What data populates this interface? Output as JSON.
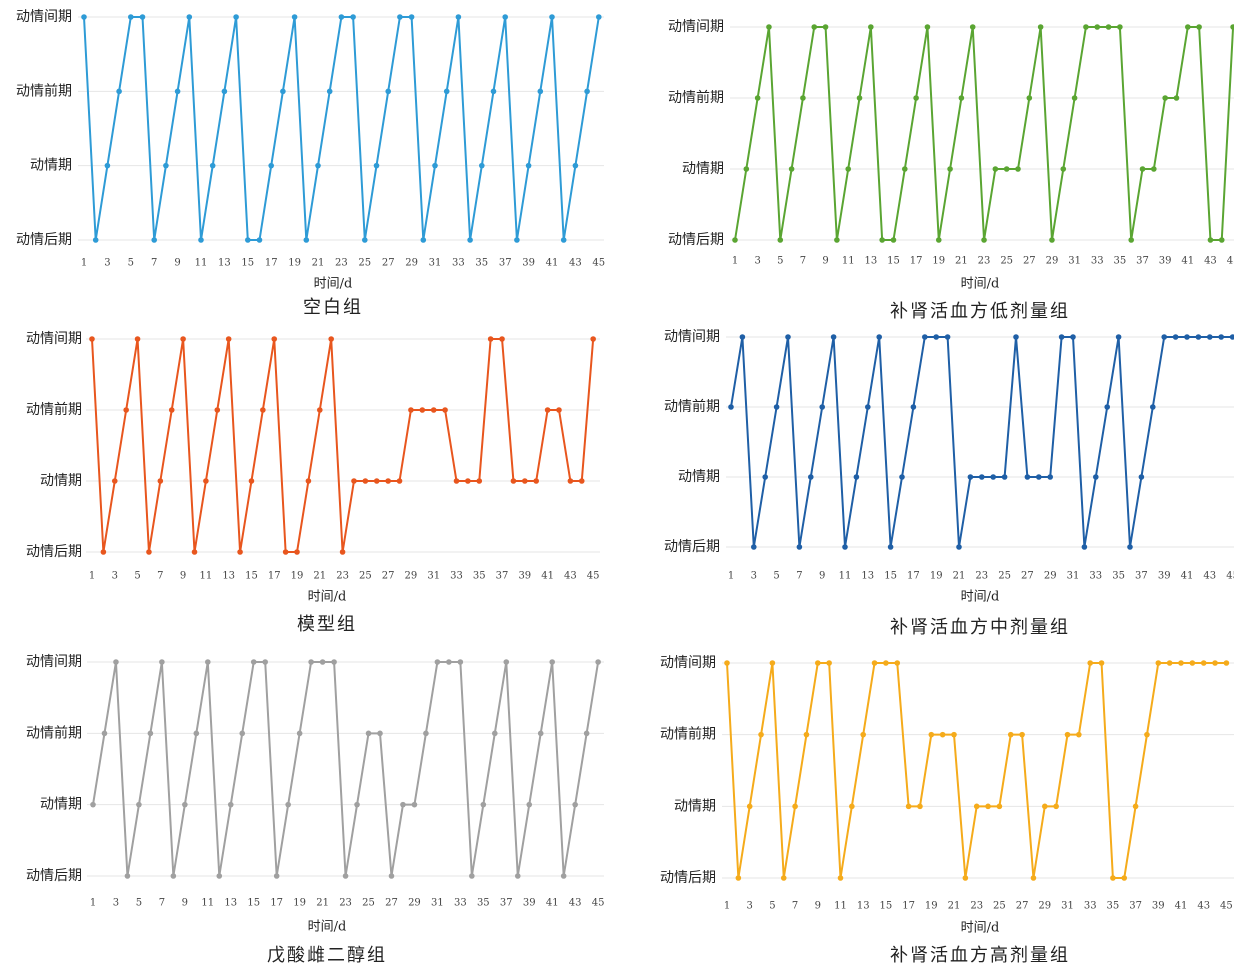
{
  "chart_data": [
    {
      "type": "line",
      "title": "空白组",
      "x_label": "时间/d",
      "categories": [
        1,
        null,
        3,
        null,
        5,
        null,
        7,
        null,
        9,
        null,
        11,
        null,
        13,
        null,
        15,
        null,
        17,
        null,
        19,
        null,
        21,
        null,
        23,
        null,
        25,
        null,
        27,
        null,
        29,
        null,
        31,
        null,
        33,
        null,
        35,
        null,
        37,
        null,
        39,
        null,
        41,
        null,
        43,
        null,
        45
      ],
      "ylim": [
        0,
        3
      ],
      "yticks": [
        {
          "value": 0,
          "label": "动情后期"
        },
        {
          "value": 1,
          "label": "动情期"
        },
        {
          "value": 2,
          "label": "动情前期"
        },
        {
          "value": 3,
          "label": "动情间期"
        }
      ],
      "grid": true,
      "series": [
        {
          "color": "#2e9bd6",
          "values": [
            3,
            0,
            1,
            2,
            3,
            3,
            0,
            1,
            2,
            3,
            0,
            1,
            2,
            3,
            0,
            0,
            1,
            2,
            3,
            0,
            1,
            2,
            3,
            3,
            0,
            1,
            2,
            3,
            3,
            0,
            1,
            2,
            3,
            0,
            1,
            2,
            3,
            0,
            1,
            2,
            3,
            0,
            1,
            2,
            3
          ]
        }
      ]
    },
    {
      "type": "line",
      "title": "补肾活血方低剂量组",
      "x_label": "时间/d",
      "categories": [
        1,
        null,
        3,
        null,
        5,
        null,
        7,
        null,
        9,
        null,
        11,
        null,
        13,
        null,
        15,
        null,
        17,
        null,
        19,
        null,
        21,
        null,
        23,
        null,
        25,
        null,
        27,
        null,
        29,
        null,
        31,
        null,
        33,
        null,
        35,
        null,
        37,
        null,
        39,
        null,
        41,
        null,
        43,
        null,
        45
      ],
      "ylim": [
        0,
        3
      ],
      "yticks": [
        {
          "value": 0,
          "label": "动情后期"
        },
        {
          "value": 1,
          "label": "动情期"
        },
        {
          "value": 2,
          "label": "动情前期"
        },
        {
          "value": 3,
          "label": "动情间期"
        }
      ],
      "grid": true,
      "series": [
        {
          "color": "#5aa532",
          "values": [
            0,
            1,
            2,
            3,
            0,
            1,
            2,
            3,
            3,
            0,
            1,
            2,
            3,
            0,
            0,
            1,
            2,
            3,
            0,
            1,
            2,
            3,
            0,
            1,
            1,
            1,
            2,
            3,
            0,
            1,
            2,
            3,
            3,
            3,
            3,
            0,
            1,
            1,
            2,
            2,
            3,
            3,
            0,
            0,
            3
          ]
        }
      ]
    },
    {
      "type": "line",
      "title": "模型组",
      "x_label": "时间/d",
      "categories": [
        1,
        null,
        3,
        null,
        5,
        null,
        7,
        null,
        9,
        null,
        11,
        null,
        13,
        null,
        15,
        null,
        17,
        null,
        19,
        null,
        21,
        null,
        23,
        null,
        25,
        null,
        27,
        null,
        29,
        null,
        31,
        null,
        33,
        null,
        35,
        null,
        37,
        null,
        39,
        null,
        41,
        null,
        43,
        null,
        45
      ],
      "ylim": [
        0,
        3
      ],
      "yticks": [
        {
          "value": 0,
          "label": "动情后期"
        },
        {
          "value": 1,
          "label": "动情期"
        },
        {
          "value": 2,
          "label": "动情前期"
        },
        {
          "value": 3,
          "label": "动情间期"
        }
      ],
      "grid": true,
      "series": [
        {
          "color": "#e8561e",
          "values": [
            3,
            0,
            1,
            2,
            3,
            0,
            1,
            2,
            3,
            0,
            1,
            2,
            3,
            0,
            1,
            2,
            3,
            0,
            0,
            1,
            2,
            3,
            0,
            1,
            1,
            1,
            1,
            1,
            2,
            2,
            2,
            2,
            1,
            1,
            1,
            3,
            3,
            1,
            1,
            1,
            2,
            2,
            1,
            1,
            3
          ]
        }
      ]
    },
    {
      "type": "line",
      "title": "补肾活血方中剂量组",
      "x_label": "时间/d",
      "categories": [
        1,
        null,
        3,
        null,
        5,
        null,
        7,
        null,
        9,
        null,
        11,
        null,
        13,
        null,
        15,
        null,
        17,
        null,
        19,
        null,
        21,
        null,
        23,
        null,
        25,
        null,
        27,
        null,
        29,
        null,
        31,
        null,
        33,
        null,
        35,
        null,
        37,
        null,
        39,
        null,
        41,
        null,
        43,
        null,
        45
      ],
      "ylim": [
        0,
        3
      ],
      "yticks": [
        {
          "value": 0,
          "label": "动情后期"
        },
        {
          "value": 1,
          "label": "动情期"
        },
        {
          "value": 2,
          "label": "动情前期"
        },
        {
          "value": 3,
          "label": "动情间期"
        }
      ],
      "grid": true,
      "series": [
        {
          "color": "#1f5fa6",
          "values": [
            2,
            3,
            0,
            1,
            2,
            3,
            0,
            1,
            2,
            3,
            0,
            1,
            2,
            3,
            0,
            1,
            2,
            3,
            3,
            3,
            0,
            1,
            1,
            1,
            1,
            3,
            1,
            1,
            1,
            3,
            3,
            0,
            1,
            2,
            3,
            0,
            1,
            2,
            3,
            3,
            3,
            3,
            3,
            3,
            3
          ]
        }
      ]
    },
    {
      "type": "line",
      "title": "戊酸雌二醇组",
      "x_label": "时间/d",
      "categories": [
        1,
        null,
        3,
        null,
        5,
        null,
        7,
        null,
        9,
        null,
        11,
        null,
        13,
        null,
        15,
        null,
        17,
        null,
        19,
        null,
        21,
        null,
        23,
        null,
        25,
        null,
        27,
        null,
        29,
        null,
        31,
        null,
        33,
        null,
        35,
        null,
        37,
        null,
        39,
        null,
        41,
        null,
        43,
        null,
        45
      ],
      "ylim": [
        0,
        3
      ],
      "yticks": [
        {
          "value": 0,
          "label": "动情后期"
        },
        {
          "value": 1,
          "label": "动情期"
        },
        {
          "value": 2,
          "label": "动情前期"
        },
        {
          "value": 3,
          "label": "动情间期"
        }
      ],
      "grid": true,
      "series": [
        {
          "color": "#a0a0a0",
          "values": [
            1,
            2,
            3,
            0,
            1,
            2,
            3,
            0,
            1,
            2,
            3,
            0,
            1,
            2,
            3,
            3,
            0,
            1,
            2,
            3,
            3,
            3,
            0,
            1,
            2,
            2,
            0,
            1,
            1,
            2,
            3,
            3,
            3,
            0,
            1,
            2,
            3,
            0,
            1,
            2,
            3,
            0,
            1,
            2,
            3
          ]
        }
      ]
    },
    {
      "type": "line",
      "title": "补肾活血方高剂量组",
      "x_label": "时间/d",
      "categories": [
        1,
        null,
        3,
        null,
        5,
        null,
        7,
        null,
        9,
        null,
        11,
        null,
        13,
        null,
        15,
        null,
        17,
        null,
        19,
        null,
        21,
        null,
        23,
        null,
        25,
        null,
        27,
        null,
        29,
        null,
        31,
        null,
        33,
        null,
        35,
        null,
        37,
        null,
        39,
        null,
        41,
        null,
        43,
        null,
        45
      ],
      "ylim": [
        0,
        3
      ],
      "yticks": [
        {
          "value": 0,
          "label": "动情后期"
        },
        {
          "value": 1,
          "label": "动情期"
        },
        {
          "value": 2,
          "label": "动情前期"
        },
        {
          "value": 3,
          "label": "动情间期"
        }
      ],
      "grid": true,
      "series": [
        {
          "color": "#f5ab1b",
          "values": [
            3,
            0,
            1,
            2,
            3,
            0,
            1,
            2,
            3,
            3,
            0,
            1,
            2,
            3,
            3,
            3,
            1,
            1,
            2,
            2,
            2,
            0,
            1,
            1,
            1,
            2,
            2,
            0,
            1,
            1,
            2,
            2,
            3,
            3,
            0,
            0,
            1,
            2,
            3,
            3,
            3,
            3,
            3,
            3,
            3
          ]
        }
      ]
    }
  ]
}
